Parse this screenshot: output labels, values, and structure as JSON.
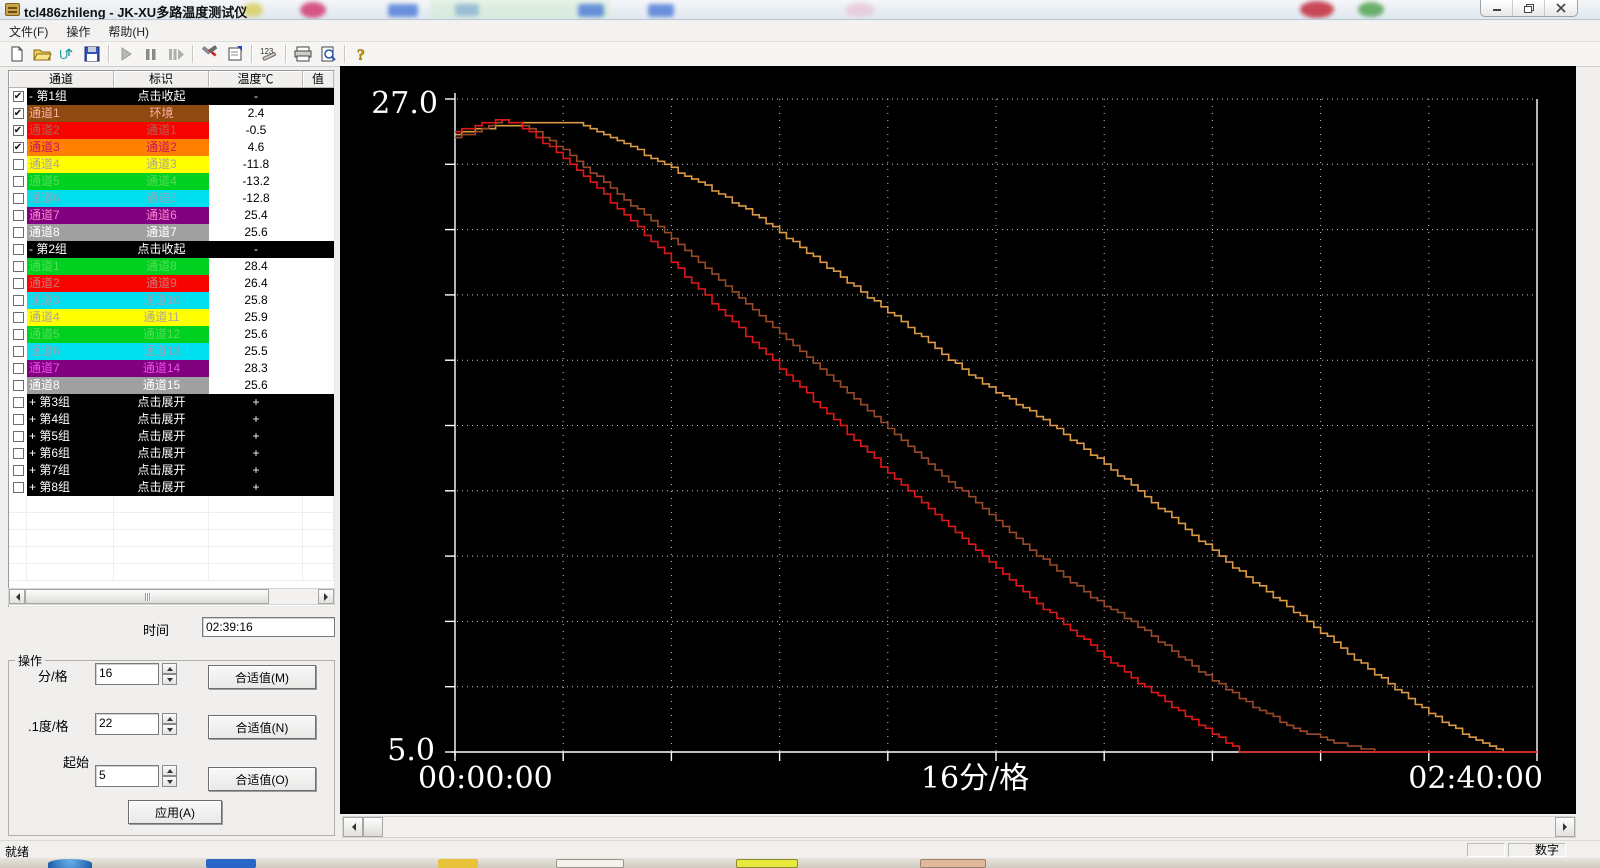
{
  "window": {
    "title": "tcl486zhileng - JK-XU多路温度测试仪",
    "controls": [
      "minimize",
      "restore",
      "close"
    ]
  },
  "menu": {
    "items": [
      "文件(F)",
      "操作",
      "帮助(H)"
    ]
  },
  "toolbar": {
    "buttons": [
      "new",
      "open",
      "import",
      "save",
      "sep",
      "play",
      "pause",
      "step",
      "sep",
      "tools",
      "properties",
      "sep",
      "numbers",
      "sep",
      "print",
      "preview",
      "sep",
      "help"
    ]
  },
  "table": {
    "headers": [
      "通道",
      "标识",
      "温度℃",
      "值"
    ],
    "groups": [
      {
        "label": "- 第1组",
        "action": "点击收起",
        "temp": "-",
        "checked": true,
        "rows": [
          {
            "ch": "通道1",
            "id": "环境",
            "temp": "2.4",
            "bg": "#8e4a10",
            "fg": "#ffb0a0",
            "checked": true
          },
          {
            "ch": "通道2",
            "id": "通道1",
            "temp": "-0.5",
            "bg": "#f80400",
            "fg": "#b06050",
            "checked": true
          },
          {
            "ch": "通道3",
            "id": "通道2",
            "temp": "4.6",
            "bg": "#ff8000",
            "fg": "#cc1166",
            "checked": true
          },
          {
            "ch": "通道4",
            "id": "通道3",
            "temp": "-11.8",
            "bg": "#ffff00",
            "fg": "#b2a694",
            "checked": false
          },
          {
            "ch": "通道5",
            "id": "通道4",
            "temp": "-13.2",
            "bg": "#00d020",
            "fg": "#55dd55",
            "checked": false
          },
          {
            "ch": "通道6",
            "id": "通道5",
            "temp": "-12.8",
            "bg": "#00dff0",
            "fg": "#8fa8b8",
            "checked": false
          },
          {
            "ch": "通道7",
            "id": "通道6",
            "temp": "25.4",
            "bg": "#800080",
            "fg": "#ff85c8",
            "checked": false
          },
          {
            "ch": "通道8",
            "id": "通道7",
            "temp": "25.6",
            "bg": "#a0a0a0",
            "fg": "#ffffff",
            "checked": false
          }
        ]
      },
      {
        "label": "- 第2组",
        "action": "点击收起",
        "temp": "-",
        "checked": false,
        "rows": [
          {
            "ch": "通道1",
            "id": "通道8",
            "temp": "28.4",
            "bg": "#00d020",
            "fg": "#55dd55",
            "checked": false
          },
          {
            "ch": "通道2",
            "id": "通道9",
            "temp": "26.4",
            "bg": "#f80400",
            "fg": "#cc7777",
            "checked": false
          },
          {
            "ch": "通道3",
            "id": "通道10",
            "temp": "25.8",
            "bg": "#00dff0",
            "fg": "#8fa8b8",
            "checked": false
          },
          {
            "ch": "通道4",
            "id": "通道11",
            "temp": "25.9",
            "bg": "#ffff00",
            "fg": "#b2a694",
            "checked": false
          },
          {
            "ch": "通道5",
            "id": "通道12",
            "temp": "25.6",
            "bg": "#00d020",
            "fg": "#55dd55",
            "checked": false
          },
          {
            "ch": "通道6",
            "id": "通道13",
            "temp": "25.5",
            "bg": "#00dff0",
            "fg": "#8fa8b8",
            "checked": false
          },
          {
            "ch": "通道7",
            "id": "通道14",
            "temp": "28.3",
            "bg": "#800080",
            "fg": "#f050f0",
            "checked": false
          },
          {
            "ch": "通道8",
            "id": "通道15",
            "temp": "25.6",
            "bg": "#a0a0a0",
            "fg": "#ffffff",
            "checked": false
          }
        ]
      },
      {
        "label": "+ 第3组",
        "action": "点击展开",
        "temp": "+",
        "checked": false,
        "rows": []
      },
      {
        "label": "+ 第4组",
        "action": "点击展开",
        "temp": "+",
        "checked": false,
        "rows": []
      },
      {
        "label": "+ 第5组",
        "action": "点击展开",
        "temp": "+",
        "checked": false,
        "rows": []
      },
      {
        "label": "+ 第6组",
        "action": "点击展开",
        "temp": "+",
        "checked": false,
        "rows": []
      },
      {
        "label": "+ 第7组",
        "action": "点击展开",
        "temp": "+",
        "checked": false,
        "rows": []
      },
      {
        "label": "+ 第8组",
        "action": "点击展开",
        "temp": "+",
        "checked": false,
        "rows": []
      }
    ]
  },
  "panel": {
    "time_label": "时间",
    "time_value": "02:39:16",
    "box_title": "操作",
    "rows": [
      {
        "label": "分/格",
        "value": "16",
        "button": "合适值(M)"
      },
      {
        "label": ".1度/格",
        "value": "22",
        "button": "合适值(N)"
      },
      {
        "label": "起始",
        "value": "5",
        "button": "合适值(O)"
      }
    ],
    "apply_label": "应用(A)"
  },
  "chart_data": {
    "type": "line",
    "title": "",
    "background": "#000000",
    "x_axis": {
      "label_start": "00:00:00",
      "label_center": "16分/格",
      "label_end": "02:40:00",
      "minutes_total": 160,
      "minutes_per_div": 16,
      "divisions": 10
    },
    "y_axis": {
      "label_top": "27.0",
      "label_bottom": "5.0",
      "min": 5.0,
      "max": 27.0,
      "deg_per_div": 2.2,
      "divisions": 10
    },
    "grid": "dotted",
    "series": [
      {
        "name": "通道3 (通道2)",
        "color": "#dd9944",
        "points": [
          [
            0,
            25.8
          ],
          [
            4,
            26.0
          ],
          [
            8,
            26.1
          ],
          [
            12,
            26.2
          ],
          [
            18,
            26.2
          ],
          [
            24,
            25.6
          ],
          [
            30,
            24.9
          ],
          [
            36,
            24.2
          ],
          [
            42,
            23.4
          ],
          [
            48,
            22.5
          ],
          [
            54,
            21.5
          ],
          [
            60,
            20.5
          ],
          [
            66,
            19.5
          ],
          [
            72,
            18.4
          ],
          [
            78,
            17.4
          ],
          [
            84,
            16.6
          ],
          [
            90,
            15.7
          ],
          [
            96,
            14.7
          ],
          [
            102,
            13.6
          ],
          [
            108,
            12.5
          ],
          [
            114,
            11.4
          ],
          [
            120,
            10.4
          ],
          [
            126,
            9.4
          ],
          [
            132,
            8.3
          ],
          [
            138,
            7.3
          ],
          [
            144,
            6.3
          ],
          [
            150,
            5.5
          ],
          [
            155,
            5.0
          ],
          [
            160,
            5.0
          ]
        ]
      },
      {
        "name": "通道1 (环境)",
        "color": "#9a4a28",
        "points": [
          [
            0,
            25.7
          ],
          [
            3,
            25.9
          ],
          [
            7,
            26.3
          ],
          [
            10,
            26.1
          ],
          [
            14,
            25.6
          ],
          [
            18,
            24.9
          ],
          [
            24,
            23.8
          ],
          [
            30,
            22.7
          ],
          [
            36,
            21.5
          ],
          [
            42,
            20.3
          ],
          [
            48,
            19.1
          ],
          [
            54,
            17.9
          ],
          [
            60,
            16.7
          ],
          [
            66,
            15.5
          ],
          [
            72,
            14.3
          ],
          [
            78,
            13.2
          ],
          [
            84,
            12.0
          ],
          [
            90,
            10.9
          ],
          [
            96,
            9.9
          ],
          [
            100,
            9.4
          ],
          [
            106,
            8.4
          ],
          [
            112,
            7.4
          ],
          [
            118,
            6.5
          ],
          [
            124,
            5.8
          ],
          [
            130,
            5.3
          ],
          [
            136,
            5.0
          ],
          [
            160,
            5.0
          ]
        ]
      },
      {
        "name": "通道2 (通道1)",
        "color": "#e01818",
        "points": [
          [
            0,
            25.9
          ],
          [
            3,
            26.1
          ],
          [
            6,
            26.3
          ],
          [
            9,
            26.2
          ],
          [
            12,
            25.7
          ],
          [
            16,
            25.0
          ],
          [
            20,
            24.2
          ],
          [
            25,
            23.1
          ],
          [
            30,
            22.0
          ],
          [
            35,
            20.8
          ],
          [
            40,
            19.7
          ],
          [
            45,
            18.6
          ],
          [
            50,
            17.5
          ],
          [
            55,
            16.4
          ],
          [
            60,
            15.3
          ],
          [
            65,
            14.2
          ],
          [
            70,
            13.2
          ],
          [
            75,
            12.2
          ],
          [
            80,
            11.2
          ],
          [
            85,
            10.2
          ],
          [
            90,
            9.3
          ],
          [
            95,
            8.4
          ],
          [
            100,
            7.5
          ],
          [
            105,
            6.7
          ],
          [
            110,
            5.9
          ],
          [
            116,
            5.0
          ],
          [
            160,
            5.0
          ]
        ]
      }
    ]
  },
  "status": {
    "ready": "就绪",
    "num": "数字"
  }
}
